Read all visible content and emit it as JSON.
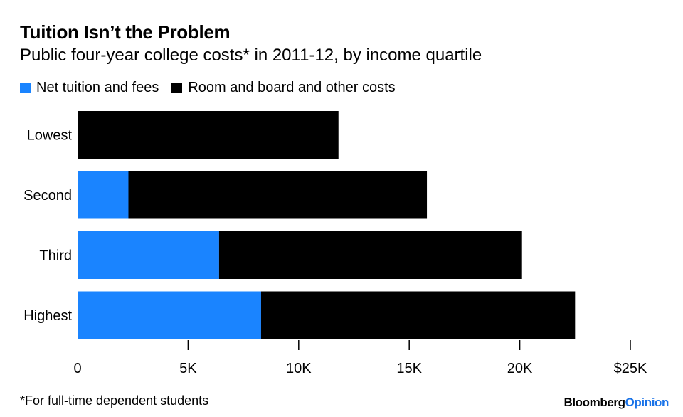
{
  "header": {
    "title": "Tuition Isn’t the Problem",
    "subtitle": "Public four-year college costs* in 2011-12, by income quartile"
  },
  "footer": {
    "footnote": "*For full-time dependent students",
    "brand_part1": "Bloomberg",
    "brand_part2": "Opinion"
  },
  "colors": {
    "tuition": "#1A84FF",
    "other": "#000000",
    "axis": "#000000",
    "brand_accent": "#1A73E8"
  },
  "chart_data": {
    "type": "bar",
    "orientation": "horizontal",
    "stacked": true,
    "title": "Tuition Isn’t the Problem",
    "subtitle": "Public four-year college costs* in 2011-12, by income quartile",
    "categories": [
      "Lowest",
      "Second",
      "Third",
      "Highest"
    ],
    "series": [
      {
        "name": "Net tuition and fees",
        "values": [
          0,
          2300,
          6400,
          8300
        ]
      },
      {
        "name": "Room and board and other costs",
        "values": [
          11800,
          13500,
          13700,
          14200
        ]
      }
    ],
    "xlim": [
      0,
      25000
    ],
    "xticks": [
      0,
      5000,
      10000,
      15000,
      20000,
      25000
    ],
    "xtick_labels": [
      "0",
      "5K",
      "10K",
      "15K",
      "20K",
      "$25K"
    ],
    "grid": false,
    "legend_position": "top-left"
  }
}
